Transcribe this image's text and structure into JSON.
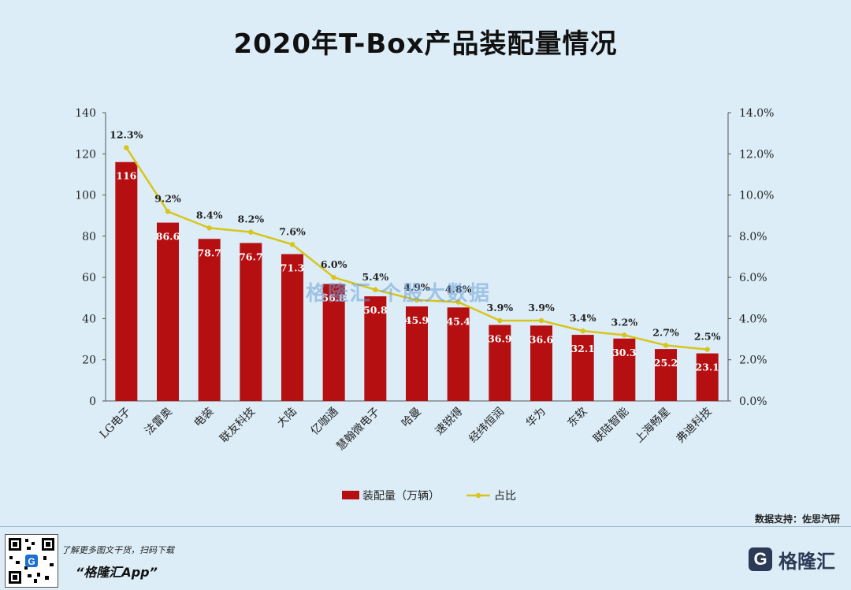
{
  "chart_data": {
    "type": "bar",
    "title": "2020年T-Box产品装配量情况",
    "categories": [
      "LG电子",
      "法雷奥",
      "电装",
      "联友科技",
      "大陆",
      "亿咖通",
      "慧翰微电子",
      "哈曼",
      "速锐得",
      "经纬恒润",
      "华为",
      "东软",
      "联陆智能",
      "上海畅星",
      "弗迪科技"
    ],
    "series": [
      {
        "name": "装配量（万辆）",
        "kind": "bar",
        "axis": "left",
        "color": "#b50f12",
        "values": [
          116,
          86.6,
          78.7,
          76.7,
          71.3,
          56.8,
          50.8,
          45.9,
          45.4,
          36.9,
          36.6,
          32.1,
          30.3,
          25.2,
          23.1
        ],
        "labels": [
          "116",
          "86.6",
          "78.7",
          "76.7",
          "71.3",
          "56.8",
          "50.8",
          "45.9",
          "45.4",
          "36.9",
          "36.6",
          "32.1",
          "30.3",
          "25.2",
          "23.1"
        ]
      },
      {
        "name": "占比",
        "kind": "line",
        "axis": "right",
        "color": "#d7c51d",
        "values": [
          12.3,
          9.2,
          8.4,
          8.2,
          7.6,
          6.0,
          5.4,
          4.9,
          4.8,
          3.9,
          3.9,
          3.4,
          3.2,
          2.7,
          2.5
        ],
        "labels": [
          "12.3%",
          "9.2%",
          "8.4%",
          "8.2%",
          "7.6%",
          "6.0%",
          "5.4%",
          "4.9%",
          "4.8%",
          "3.9%",
          "3.9%",
          "3.4%",
          "3.2%",
          "2.7%",
          "2.5%"
        ]
      }
    ],
    "ylim_left": [
      0,
      140
    ],
    "yticks_left": [
      "0",
      "20",
      "40",
      "60",
      "80",
      "100",
      "120",
      "140"
    ],
    "ylim_right": [
      0,
      14
    ],
    "yticks_right": [
      "0.0%",
      "2.0%",
      "4.0%",
      "6.0%",
      "8.0%",
      "10.0%",
      "12.0%",
      "14.0%"
    ],
    "legend_position": "bottom",
    "grid": false
  },
  "watermark": "格隆汇 个股大数据",
  "source": "数据支持：佐思汽研",
  "promo": {
    "sub": "了解更多图文干货，扫码下载",
    "main": "“格隆汇App”"
  },
  "brand": {
    "icon": "G",
    "name": "格隆汇"
  }
}
